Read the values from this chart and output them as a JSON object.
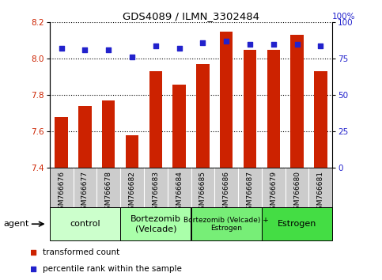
{
  "title": "GDS4089 / ILMN_3302484",
  "samples": [
    "GSM766676",
    "GSM766677",
    "GSM766678",
    "GSM766682",
    "GSM766683",
    "GSM766684",
    "GSM766685",
    "GSM766686",
    "GSM766687",
    "GSM766679",
    "GSM766680",
    "GSM766681"
  ],
  "bar_values": [
    7.68,
    7.74,
    7.77,
    7.58,
    7.93,
    7.86,
    7.97,
    8.15,
    8.05,
    8.05,
    8.13,
    7.93
  ],
  "dot_values": [
    82,
    81,
    81,
    76,
    84,
    82,
    86,
    87,
    85,
    85,
    85,
    84
  ],
  "bar_color": "#cc2200",
  "dot_color": "#2222cc",
  "ylim_left": [
    7.4,
    8.2
  ],
  "ylim_right": [
    0,
    100
  ],
  "yticks_left": [
    7.4,
    7.6,
    7.8,
    8.0,
    8.2
  ],
  "yticks_right": [
    0,
    25,
    50,
    75,
    100
  ],
  "groups": [
    {
      "label": "control",
      "start": 0,
      "end": 3,
      "color": "#ccffcc"
    },
    {
      "label": "Bortezomib\n(Velcade)",
      "start": 3,
      "end": 6,
      "color": "#aaffaa"
    },
    {
      "label": "Bortezomib (Velcade) +\nEstrogen",
      "start": 6,
      "end": 9,
      "color": "#77ee77"
    },
    {
      "label": "Estrogen",
      "start": 9,
      "end": 12,
      "color": "#44dd44"
    }
  ],
  "agent_label": "agent",
  "legend_bar": "transformed count",
  "legend_dot": "percentile rank within the sample",
  "xtick_bg": "#cccccc",
  "xtick_divider": "#ffffff"
}
